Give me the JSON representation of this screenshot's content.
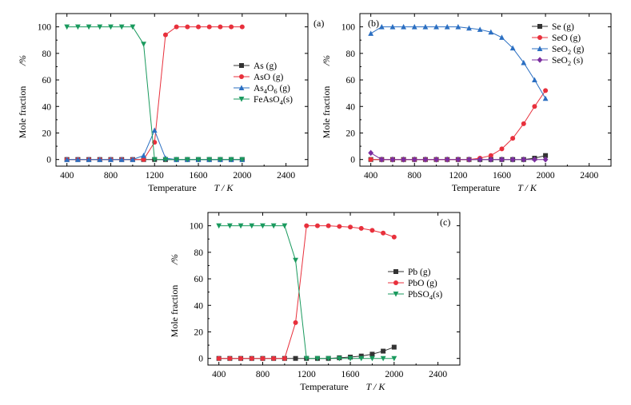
{
  "chart_data": [
    {
      "type": "line",
      "panel_label": "(a)",
      "xlabel": "Temperature",
      "xunit": "T / K",
      "ylabel": "Mole fraction",
      "yunit": "/%",
      "xlim": [
        300,
        2600
      ],
      "ylim": [
        -5,
        110
      ],
      "xticks": [
        400,
        800,
        1200,
        1600,
        2000,
        2400
      ],
      "yticks": [
        0,
        20,
        40,
        60,
        80,
        100
      ],
      "legend_position": "center-right",
      "x": [
        400,
        500,
        600,
        700,
        800,
        900,
        1000,
        1100,
        1200,
        1300,
        1400,
        1500,
        1600,
        1700,
        1800,
        1900,
        2000
      ],
      "series": [
        {
          "name": "As (g)",
          "color": "#333333",
          "marker": "square",
          "values": [
            0,
            0,
            0,
            0,
            0,
            0,
            0,
            0,
            0,
            0,
            0,
            0,
            0,
            0,
            0,
            0,
            0
          ]
        },
        {
          "name": "AsO (g)",
          "color": "#e8303c",
          "marker": "circle",
          "values": [
            0,
            0,
            0,
            0,
            0,
            0,
            0,
            0,
            13,
            94,
            100,
            100,
            100,
            100,
            100,
            100,
            100
          ]
        },
        {
          "name": "As4O6 (g)",
          "label_main": "As",
          "label_sub1": "4",
          "label_mid": "O",
          "label_sub2": "6",
          "label_tail": " (g)",
          "color": "#2b6fc2",
          "marker": "triangle-up",
          "values": [
            0,
            0,
            0,
            0,
            0,
            0,
            0,
            3,
            22,
            1,
            0,
            0,
            0,
            0,
            0,
            0,
            0
          ]
        },
        {
          "name": "FeAsO4(s)",
          "label_main": "FeAsO",
          "label_sub1": "4",
          "label_tail": "(s)",
          "color": "#1a9a5e",
          "marker": "triangle-down",
          "values": [
            100,
            100,
            100,
            100,
            100,
            100,
            100,
            87,
            0,
            0,
            0,
            0,
            0,
            0,
            0,
            0,
            0
          ]
        }
      ]
    },
    {
      "type": "line",
      "panel_label": "(b)",
      "xlabel": "Temperature",
      "xunit": "T / K",
      "ylabel": "Mole fraction",
      "yunit": "/%",
      "xlim": [
        300,
        2600
      ],
      "ylim": [
        -5,
        110
      ],
      "xticks": [
        400,
        800,
        1200,
        1600,
        2000,
        2400
      ],
      "yticks": [
        0,
        20,
        40,
        60,
        80,
        100
      ],
      "legend_position": "top-right",
      "x": [
        400,
        500,
        600,
        700,
        800,
        900,
        1000,
        1100,
        1200,
        1300,
        1400,
        1500,
        1600,
        1700,
        1800,
        1900,
        2000
      ],
      "series": [
        {
          "name": "Se (g)",
          "color": "#333333",
          "marker": "square",
          "values": [
            0,
            0,
            0,
            0,
            0,
            0,
            0,
            0,
            0,
            0,
            0,
            0,
            0,
            0,
            0,
            1,
            3
          ]
        },
        {
          "name": "SeO (g)",
          "color": "#e8303c",
          "marker": "circle",
          "values": [
            0,
            0,
            0,
            0,
            0,
            0,
            0,
            0,
            0,
            0,
            1,
            3,
            8,
            16,
            27,
            40,
            52
          ]
        },
        {
          "name": "SeO2 (g)",
          "label_main": "SeO",
          "label_sub1": "2",
          "label_tail": " (g)",
          "color": "#2b6fc2",
          "marker": "triangle-up",
          "values": [
            95,
            100,
            100,
            100,
            100,
            100,
            100,
            100,
            100,
            99,
            98,
            96,
            92,
            84,
            73,
            60,
            46
          ]
        },
        {
          "name": "SeO2 (s)",
          "label_main": "SeO",
          "label_sub1": "2",
          "label_tail": " (s)",
          "color": "#7b2fa0",
          "marker": "diamond",
          "values": [
            5,
            0,
            0,
            0,
            0,
            0,
            0,
            0,
            0,
            0,
            0,
            0,
            0,
            0,
            0,
            0,
            0
          ]
        }
      ]
    },
    {
      "type": "line",
      "panel_label": "(c)",
      "xlabel": "Temperature",
      "xunit": "T / K",
      "ylabel": "Mole fraction",
      "yunit": "/%",
      "xlim": [
        300,
        2600
      ],
      "ylim": [
        -5,
        110
      ],
      "xticks": [
        400,
        800,
        1200,
        1600,
        2000,
        2400
      ],
      "yticks": [
        0,
        20,
        40,
        60,
        80,
        100
      ],
      "legend_position": "center-right",
      "x": [
        400,
        500,
        600,
        700,
        800,
        900,
        1000,
        1100,
        1200,
        1300,
        1400,
        1500,
        1600,
        1700,
        1800,
        1900,
        2000
      ],
      "series": [
        {
          "name": "Pb (g)",
          "color": "#333333",
          "marker": "square",
          "values": [
            0,
            0,
            0,
            0,
            0,
            0,
            0,
            0,
            0,
            0,
            0,
            0.5,
            1,
            1.8,
            3.2,
            5.5,
            8.5
          ]
        },
        {
          "name": "PbO (g)",
          "color": "#e8303c",
          "marker": "circle",
          "values": [
            0,
            0,
            0,
            0,
            0,
            0,
            0,
            27,
            100,
            100,
            100,
            99.5,
            99,
            98,
            96.5,
            94.5,
            91.5
          ]
        },
        {
          "name": "PbSO4(s)",
          "label_main": "PbSO",
          "label_sub1": "4",
          "label_tail": "(s)",
          "color": "#1a9a5e",
          "marker": "triangle-down",
          "values": [
            100,
            100,
            100,
            100,
            100,
            100,
            100,
            74,
            0,
            0,
            0,
            0,
            0,
            0,
            0,
            0,
            0
          ]
        }
      ]
    }
  ]
}
